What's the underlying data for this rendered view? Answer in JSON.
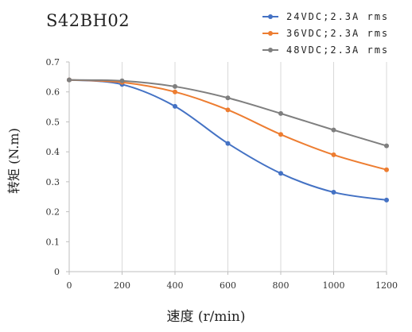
{
  "chart_data": {
    "type": "line",
    "title": "S42BH02",
    "xlabel": "速度 (r/min)",
    "ylabel": "转矩 (N.m)",
    "x": [
      0,
      200,
      400,
      600,
      800,
      1000,
      1200
    ],
    "xlim": [
      0,
      1200
    ],
    "ylim": [
      0,
      0.7
    ],
    "xticks": [
      "0",
      "200",
      "400",
      "600",
      "800",
      "1000",
      "1200"
    ],
    "yticks": [
      "0",
      "0.1",
      "0.2",
      "0.3",
      "0.4",
      "0.5",
      "0.6",
      "0.7"
    ],
    "grid": "vertical",
    "legend_position": "top-right",
    "series": [
      {
        "name": "24VDC;2.3A rms",
        "color": "#4472c4",
        "values": [
          0.64,
          0.625,
          0.552,
          0.428,
          0.328,
          0.265,
          0.239
        ]
      },
      {
        "name": "36VDC;2.3A rms",
        "color": "#ed7d31",
        "values": [
          0.64,
          0.632,
          0.6,
          0.54,
          0.458,
          0.39,
          0.34
        ]
      },
      {
        "name": "48VDC;2.3A rms",
        "color": "#7f7f7f",
        "values": [
          0.64,
          0.637,
          0.618,
          0.58,
          0.528,
          0.473,
          0.42
        ]
      }
    ]
  }
}
